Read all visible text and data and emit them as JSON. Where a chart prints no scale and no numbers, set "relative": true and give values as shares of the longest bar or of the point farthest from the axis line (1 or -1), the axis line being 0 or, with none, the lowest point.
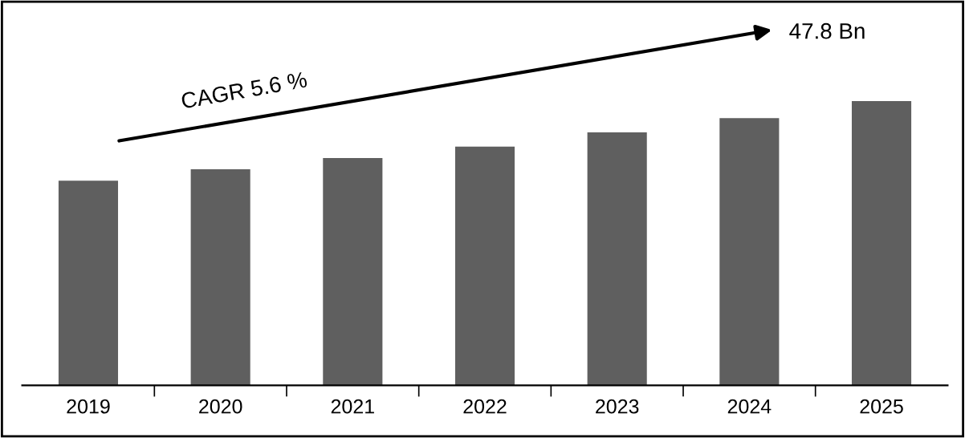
{
  "chart_data": {
    "type": "bar",
    "relative": true,
    "categories": [
      "2019",
      "2020",
      "2021",
      "2022",
      "2023",
      "2024",
      "2025"
    ],
    "values": [
      0.72,
      0.76,
      0.8,
      0.84,
      0.89,
      0.94,
      1.0
    ],
    "color": "#5f5f5f",
    "grid": false,
    "legend": false,
    "annotations": [
      "CAGR 5.6 %",
      "47.8 Bn"
    ]
  }
}
